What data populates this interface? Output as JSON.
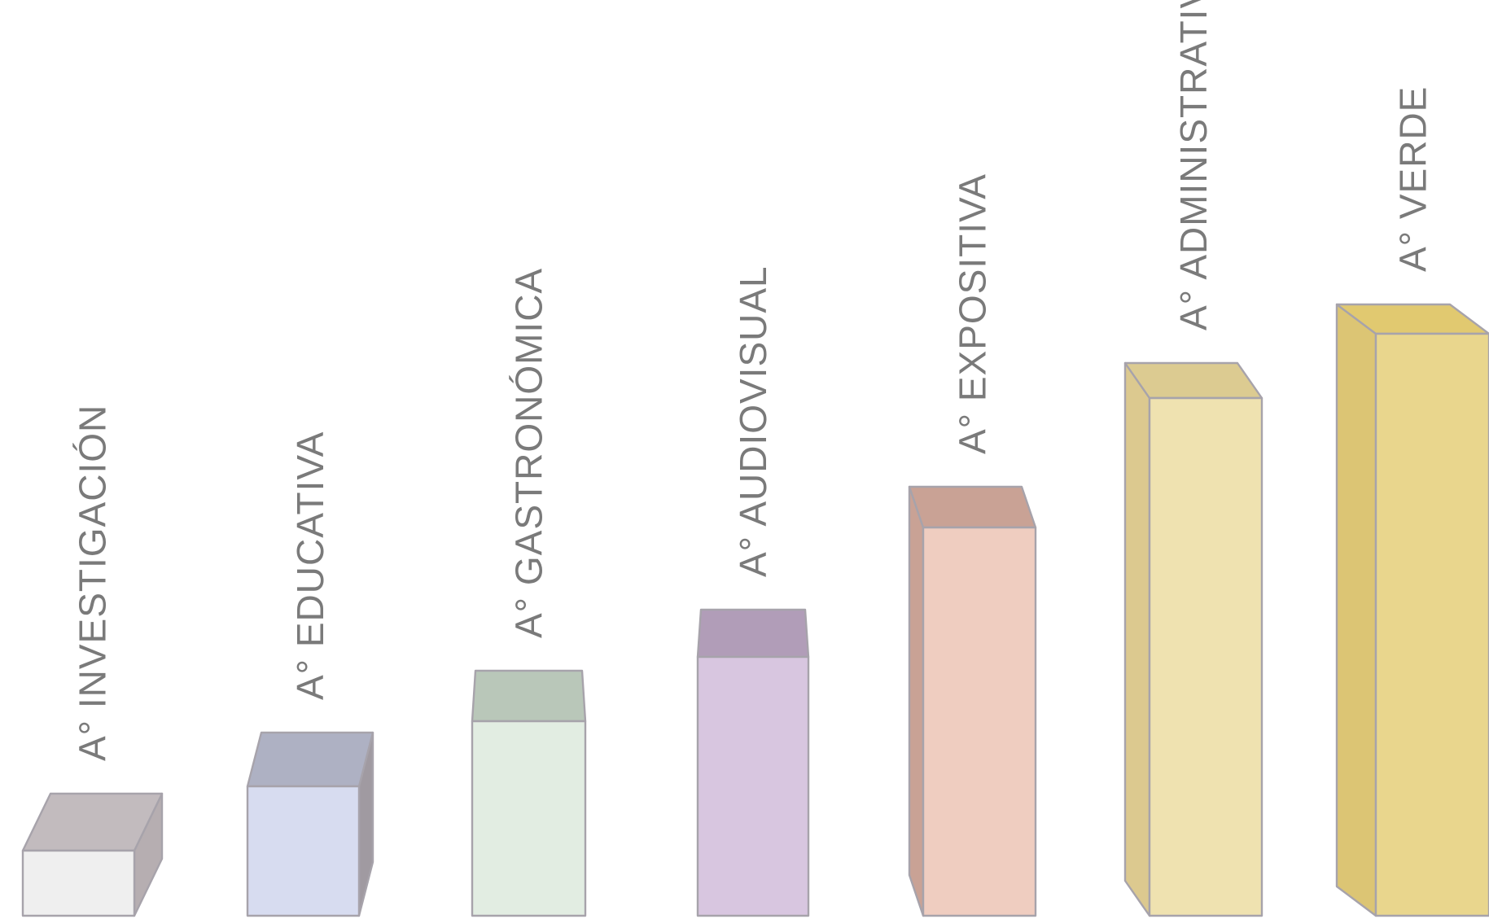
{
  "chart_data": {
    "type": "bar",
    "style": "3d-prism",
    "categories": [
      "A°  INVESTIGACIÓN",
      "A° EDUCATIVA",
      "A° GASTRONÓMICA",
      "A° AUDIOVISUAL",
      "A° EXPOSITIVA",
      "A° ADMINISTRATIVA",
      "A° VERDE"
    ],
    "values": [
      1,
      2,
      3,
      4,
      6,
      8,
      9
    ],
    "ylim": [
      0,
      9
    ],
    "axes": "none",
    "grid": false,
    "legend": "none",
    "label_orientation": "vertical",
    "colors": [
      {
        "front": "#efefef",
        "top": "#c2bbbe",
        "side": "#b6aeb1"
      },
      {
        "front": "#d7dcf0",
        "top": "#aeb1c3",
        "side": "#a09aa1"
      },
      {
        "front": "#e2ede2",
        "top": "#b9c7b9",
        "side": "#abb8ab"
      },
      {
        "front": "#d8c6e0",
        "top": "#b19db8",
        "side": "#a48fac"
      },
      {
        "front": "#efcdc0",
        "top": "#c9a295",
        "side": "#c9a295"
      },
      {
        "front": "#efe2b0",
        "top": "#dccb91",
        "side": "#dcc98f"
      },
      {
        "front": "#e9d68d",
        "top": "#e1c970",
        "side": "#dcc574"
      }
    ]
  }
}
